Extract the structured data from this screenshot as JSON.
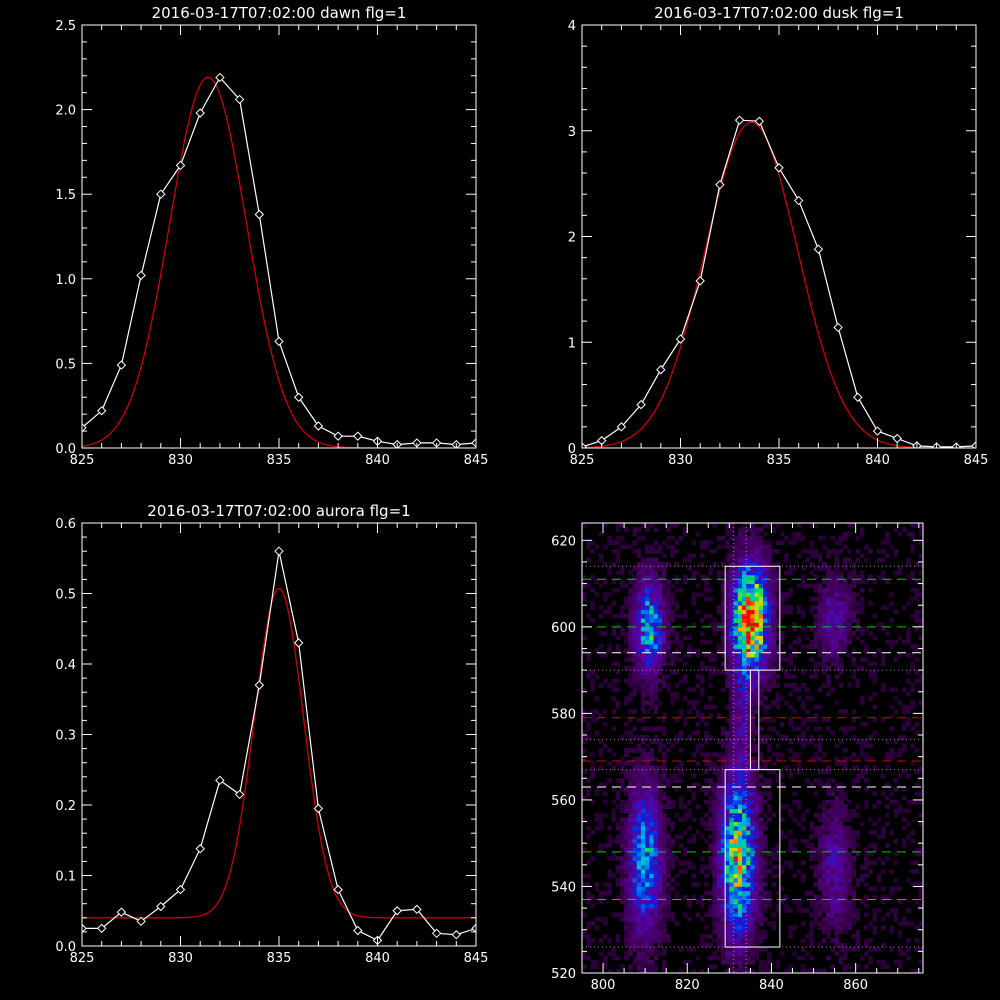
{
  "colors": {
    "background": "#000000",
    "axes": "#ffffff",
    "data_line": "#ffffff",
    "fit_line": "#cc0000",
    "dashed_green": "#00cc00",
    "dashed_red": "#cc0000",
    "dashed_white": "#ffffff",
    "dotted_magenta": "#cc66cc"
  },
  "chart_data": [
    {
      "id": "dawn",
      "type": "line",
      "title": "2016-03-17T07:02:00 dawn flg=1",
      "xlim": [
        825,
        845
      ],
      "ylim": [
        0,
        2.5
      ],
      "xticks": [
        825,
        830,
        835,
        840,
        845
      ],
      "yticks": [
        0.0,
        0.5,
        1.0,
        1.5,
        2.0,
        2.5
      ],
      "ytick_labels": [
        "0.0",
        "0.5",
        "1.0",
        "1.5",
        "2.0",
        "2.5"
      ],
      "series": [
        {
          "role": "data",
          "markers": "diamond",
          "x": [
            825,
            826,
            827,
            828,
            829,
            830,
            831,
            832,
            833,
            834,
            835,
            836,
            837,
            838,
            839,
            840,
            841,
            842,
            843,
            844,
            845
          ],
          "y": [
            0.12,
            0.22,
            0.49,
            1.02,
            1.5,
            1.67,
            1.98,
            2.19,
            2.06,
            1.38,
            0.63,
            0.3,
            0.13,
            0.07,
            0.07,
            0.04,
            0.02,
            0.03,
            0.03,
            0.02,
            0.03
          ]
        },
        {
          "role": "fit",
          "gauss": {
            "amplitude": 2.19,
            "center": 831.4,
            "sigma": 1.95,
            "offset": 0.0
          }
        }
      ]
    },
    {
      "id": "dusk",
      "type": "line",
      "title": "2016-03-17T07:02:00 dusk flg=1",
      "xlim": [
        825,
        845
      ],
      "ylim": [
        0,
        4
      ],
      "xticks": [
        825,
        830,
        835,
        840,
        845
      ],
      "yticks": [
        0,
        1,
        2,
        3,
        4
      ],
      "ytick_labels": [
        "0",
        "1",
        "2",
        "3",
        "4"
      ],
      "series": [
        {
          "role": "data",
          "markers": "diamond",
          "x": [
            825,
            826,
            827,
            828,
            829,
            830,
            831,
            832,
            833,
            834,
            835,
            836,
            837,
            838,
            839,
            840,
            841,
            842,
            843,
            844,
            845
          ],
          "y": [
            0.01,
            0.07,
            0.2,
            0.41,
            0.74,
            1.03,
            1.58,
            2.49,
            3.1,
            3.09,
            2.65,
            2.34,
            1.88,
            1.14,
            0.48,
            0.16,
            0.09,
            0.02,
            0.01,
            0.01,
            0.02
          ]
        },
        {
          "role": "fit",
          "gauss": {
            "amplitude": 3.08,
            "center": 833.6,
            "sigma": 2.35,
            "offset": 0.0
          }
        }
      ]
    },
    {
      "id": "aurora",
      "type": "line",
      "title": "2016-03-17T07:02:00 aurora flg=1",
      "xlim": [
        825,
        845
      ],
      "ylim": [
        0,
        0.6
      ],
      "xticks": [
        825,
        830,
        835,
        840,
        845
      ],
      "yticks": [
        0.0,
        0.1,
        0.2,
        0.3,
        0.4,
        0.5,
        0.6
      ],
      "ytick_labels": [
        "0.0",
        "0.1",
        "0.2",
        "0.3",
        "0.4",
        "0.5",
        "0.6"
      ],
      "series": [
        {
          "role": "data",
          "markers": "diamond",
          "x": [
            825,
            826,
            827,
            828,
            829,
            830,
            831,
            832,
            833,
            834,
            835,
            836,
            837,
            838,
            839,
            840,
            841,
            842,
            843,
            844,
            845
          ],
          "y": [
            0.025,
            0.025,
            0.048,
            0.035,
            0.056,
            0.08,
            0.138,
            0.235,
            0.215,
            0.37,
            0.56,
            0.43,
            0.195,
            0.08,
            0.022,
            0.008,
            0.05,
            0.052,
            0.018,
            0.016,
            0.025
          ]
        },
        {
          "role": "fit",
          "gauss": {
            "amplitude": 0.467,
            "center": 835.0,
            "sigma": 1.25,
            "offset": 0.04
          }
        }
      ]
    },
    {
      "id": "image",
      "type": "heatmap",
      "title": "",
      "xlim": [
        795,
        876
      ],
      "ylim": [
        520,
        624
      ],
      "xticks": [
        800,
        820,
        840,
        860
      ],
      "yticks": [
        520,
        540,
        560,
        580,
        600,
        620
      ],
      "colormap": "rainbow",
      "blobs": [
        {
          "x": 811,
          "y": 600,
          "sx": 2.3,
          "sy": 7,
          "amp": 0.55
        },
        {
          "x": 810,
          "y": 546,
          "sx": 2.6,
          "sy": 11,
          "amp": 0.5
        },
        {
          "x": 835,
          "y": 602,
          "sx": 2.8,
          "sy": 8,
          "amp": 1.0
        },
        {
          "x": 832,
          "y": 547,
          "sx": 2.8,
          "sy": 12,
          "amp": 0.72
        },
        {
          "x": 833,
          "y": 580,
          "sx": 1.6,
          "sy": 9,
          "amp": 0.18
        },
        {
          "x": 855,
          "y": 602,
          "sx": 2.5,
          "sy": 6,
          "amp": 0.22
        },
        {
          "x": 855,
          "y": 544,
          "sx": 2.5,
          "sy": 9,
          "amp": 0.22
        }
      ],
      "boxes": [
        {
          "x0": 829,
          "x1": 842,
          "y0": 590,
          "y1": 614
        },
        {
          "x0": 829,
          "x1": 842,
          "y0": 526,
          "y1": 567
        },
        {
          "x0": 835,
          "x1": 837,
          "y0": 567,
          "y1": 590
        }
      ],
      "vlines_dotted": [
        831,
        834
      ],
      "hlines": [
        {
          "y": 611,
          "style": "dashed",
          "color": "green"
        },
        {
          "y": 600,
          "style": "dashed",
          "color": "green"
        },
        {
          "y": 594,
          "style": "dashed",
          "color": "white"
        },
        {
          "y": 579,
          "style": "dashed",
          "color": "red"
        },
        {
          "y": 569,
          "style": "dashed",
          "color": "red"
        },
        {
          "y": 563,
          "style": "dashed",
          "color": "white"
        },
        {
          "y": 548,
          "style": "dashed",
          "color": "green"
        },
        {
          "y": 537,
          "style": "dashed",
          "color": "green"
        },
        {
          "y": 614,
          "style": "dotted",
          "color": "magenta"
        },
        {
          "y": 590,
          "style": "dotted",
          "color": "magenta"
        },
        {
          "y": 574,
          "style": "dotted",
          "color": "magenta"
        },
        {
          "y": 567,
          "style": "dotted",
          "color": "magenta"
        },
        {
          "y": 526,
          "style": "dotted",
          "color": "magenta"
        }
      ]
    }
  ]
}
